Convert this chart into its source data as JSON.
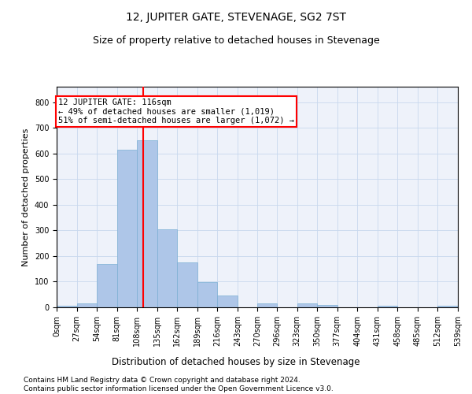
{
  "title": "12, JUPITER GATE, STEVENAGE, SG2 7ST",
  "subtitle": "Size of property relative to detached houses in Stevenage",
  "xlabel": "Distribution of detached houses by size in Stevenage",
  "ylabel": "Number of detached properties",
  "bar_color": "#aec6e8",
  "bar_edge_color": "#7bafd4",
  "grid_color": "#c8d8ee",
  "background_color": "#eef2fa",
  "property_line_x": 116,
  "property_line_color": "red",
  "annotation_text": "12 JUPITER GATE: 116sqm\n← 49% of detached houses are smaller (1,019)\n51% of semi-detached houses are larger (1,072) →",
  "annotation_box_color": "red",
  "bins": [
    0,
    27,
    54,
    81,
    108,
    135,
    162,
    189,
    216,
    243,
    270,
    296,
    323,
    350,
    377,
    404,
    431,
    458,
    485,
    512,
    539
  ],
  "bin_labels": [
    "0sqm",
    "27sqm",
    "54sqm",
    "81sqm",
    "108sqm",
    "135sqm",
    "162sqm",
    "189sqm",
    "216sqm",
    "243sqm",
    "270sqm",
    "296sqm",
    "323sqm",
    "350sqm",
    "377sqm",
    "404sqm",
    "431sqm",
    "458sqm",
    "485sqm",
    "512sqm",
    "539sqm"
  ],
  "bar_heights": [
    5,
    15,
    170,
    615,
    650,
    305,
    175,
    97,
    45,
    0,
    15,
    0,
    15,
    10,
    0,
    0,
    5,
    0,
    0,
    5
  ],
  "ylim": [
    0,
    860
  ],
  "yticks": [
    0,
    100,
    200,
    300,
    400,
    500,
    600,
    700,
    800
  ],
  "footer_text": "Contains HM Land Registry data © Crown copyright and database right 2024.\nContains public sector information licensed under the Open Government Licence v3.0.",
  "title_fontsize": 10,
  "subtitle_fontsize": 9,
  "xlabel_fontsize": 8.5,
  "ylabel_fontsize": 8,
  "tick_fontsize": 7,
  "footer_fontsize": 6.5,
  "ann_fontsize": 7.5
}
